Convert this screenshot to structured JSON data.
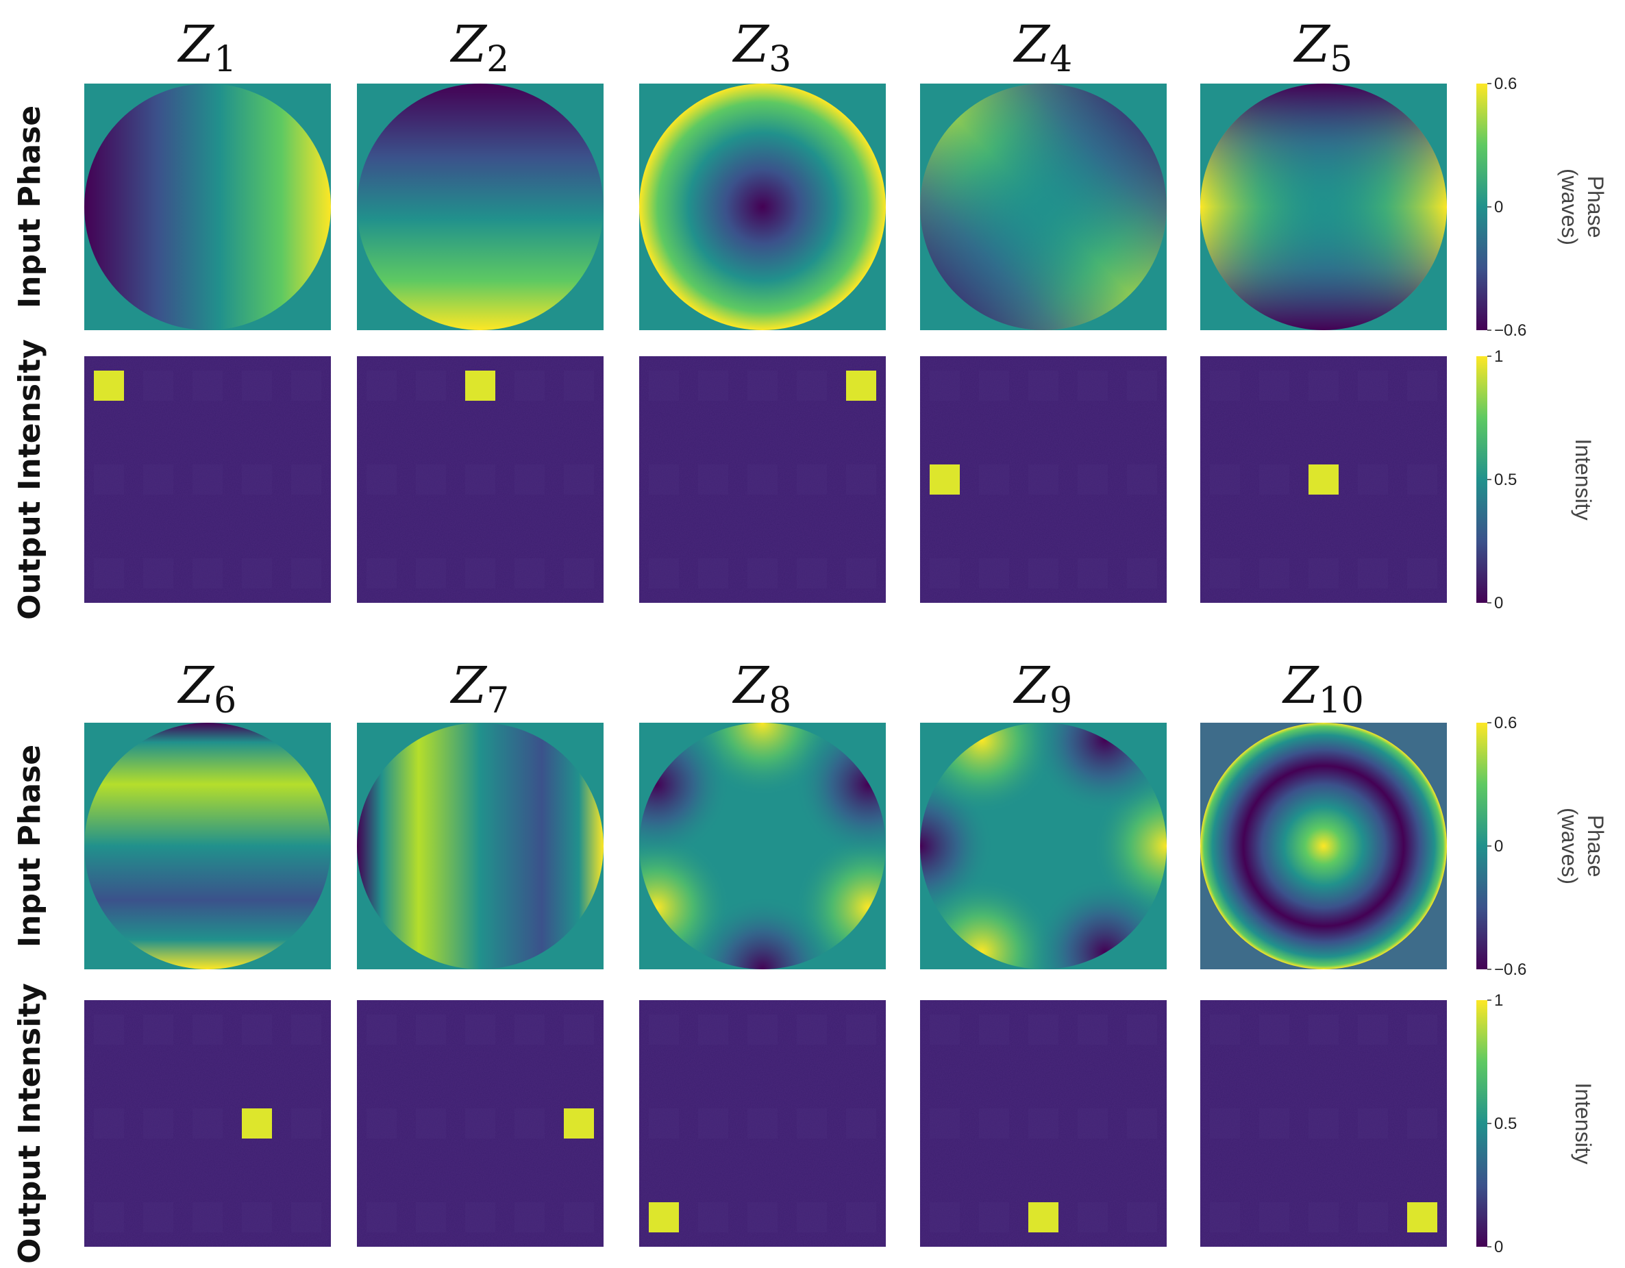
{
  "titles": [
    {
      "base": "Z",
      "sub": "1"
    },
    {
      "base": "Z",
      "sub": "2"
    },
    {
      "base": "Z",
      "sub": "3"
    },
    {
      "base": "Z",
      "sub": "4"
    },
    {
      "base": "Z",
      "sub": "5"
    },
    {
      "base": "Z",
      "sub": "6"
    },
    {
      "base": "Z",
      "sub": "7"
    },
    {
      "base": "Z",
      "sub": "8"
    },
    {
      "base": "Z",
      "sub": "9"
    },
    {
      "base": "Z",
      "sub": "10"
    }
  ],
  "row_labels": {
    "input": "Input Phase",
    "output": "Output Intensity"
  },
  "phase_colorbar": {
    "label_line1": "Phase",
    "label_line2": "(waves)",
    "ticks": [
      "0.6",
      "0",
      "−0.6"
    ],
    "range": [
      -0.6,
      0.6
    ]
  },
  "intensity_colorbar": {
    "label": "Intensity",
    "ticks": [
      "1",
      "0.5",
      "0"
    ],
    "range": [
      0,
      1
    ]
  },
  "colormap": {
    "name": "viridis",
    "stops": [
      "#440154",
      "#3b528b",
      "#21918c",
      "#5ec962",
      "#fde725"
    ]
  },
  "spot_grid": {
    "rows": 3,
    "cols": 5
  },
  "spot_positions": [
    {
      "mode": "Z1",
      "row": 1,
      "col": 1
    },
    {
      "mode": "Z2",
      "row": 1,
      "col": 3
    },
    {
      "mode": "Z3",
      "row": 1,
      "col": 5
    },
    {
      "mode": "Z4",
      "row": 2,
      "col": 1
    },
    {
      "mode": "Z5",
      "row": 2,
      "col": 3
    },
    {
      "mode": "Z6",
      "row": 2,
      "col": 4
    },
    {
      "mode": "Z7",
      "row": 2,
      "col": 5
    },
    {
      "mode": "Z8",
      "row": 3,
      "col": 1
    },
    {
      "mode": "Z9",
      "row": 3,
      "col": 3
    },
    {
      "mode": "Z10",
      "row": 3,
      "col": 5
    }
  ]
}
